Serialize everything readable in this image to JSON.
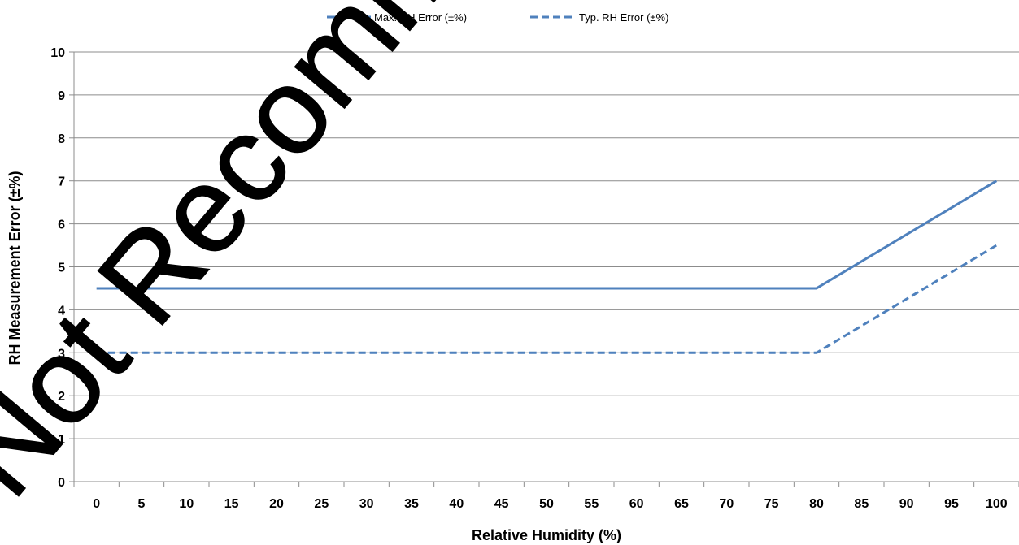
{
  "chart_data": {
    "type": "line",
    "xlabel": "Relative Humidity (%)",
    "ylabel": "RH Measurement Error (±%)",
    "xlim": [
      0,
      100
    ],
    "ylim": [
      0,
      10
    ],
    "x_ticks": [
      0,
      5,
      10,
      15,
      20,
      25,
      30,
      35,
      40,
      45,
      50,
      55,
      60,
      65,
      70,
      75,
      80,
      85,
      90,
      95,
      100
    ],
    "y_ticks": [
      0,
      1,
      2,
      3,
      4,
      5,
      6,
      7,
      8,
      9,
      10
    ],
    "grid": "horizontal",
    "legend_position": "top-center",
    "series": [
      {
        "name": "Max. RH Error (±%)",
        "style": "solid",
        "color": "#4f81bd",
        "x": [
          0,
          80,
          100
        ],
        "y": [
          4.5,
          4.5,
          7
        ]
      },
      {
        "name": "Typ. RH Error (±%)",
        "style": "dashed",
        "color": "#4f81bd",
        "x": [
          0,
          80,
          100
        ],
        "y": [
          3,
          3,
          5.5
        ]
      }
    ]
  },
  "watermark": {
    "text": "Not Recommended"
  }
}
